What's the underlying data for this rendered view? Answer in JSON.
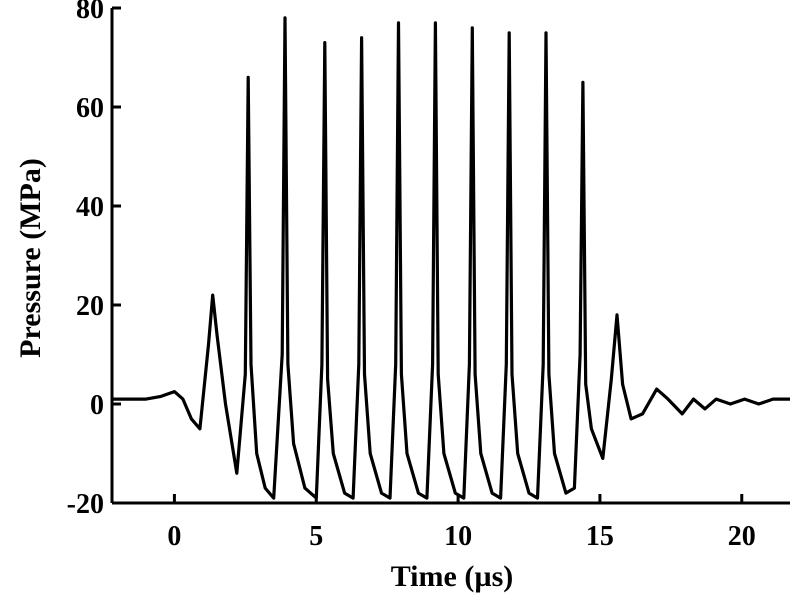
{
  "chart_data": {
    "type": "line",
    "title": "",
    "xlabel": "Time (µs)",
    "ylabel": "Pressure (MPa)",
    "xlim": [
      -2.2,
      21.7
    ],
    "ylim": [
      -20,
      80
    ],
    "xticks": [
      0,
      5,
      10,
      15,
      20
    ],
    "yticks": [
      -20,
      0,
      20,
      40,
      60,
      80
    ],
    "xtick_labels": [
      "0",
      "5",
      "10",
      "15",
      "20"
    ],
    "ytick_labels": [
      "-20",
      "0",
      "20",
      "40",
      "60",
      "80"
    ],
    "grid": false,
    "legend": "none",
    "line_color": "#000000",
    "series": [
      {
        "x": [
          -2.2,
          -1.5,
          -1.0,
          -0.5,
          0.0,
          0.3,
          0.6,
          0.9,
          1.2,
          1.35,
          1.5,
          1.8,
          2.2,
          2.5,
          2.6,
          2.7,
          2.9,
          3.2,
          3.5,
          3.8,
          3.9,
          4.0,
          4.2,
          4.6,
          5.0,
          5.2,
          5.3,
          5.4,
          5.6,
          6.0,
          6.3,
          6.5,
          6.6,
          6.7,
          6.9,
          7.3,
          7.6,
          7.8,
          7.9,
          8.0,
          8.2,
          8.6,
          8.9,
          9.1,
          9.2,
          9.3,
          9.5,
          9.9,
          10.2,
          10.4,
          10.5,
          10.6,
          10.8,
          11.2,
          11.5,
          11.7,
          11.8,
          11.9,
          12.1,
          12.5,
          12.8,
          13.0,
          13.1,
          13.2,
          13.4,
          13.8,
          14.1,
          14.3,
          14.4,
          14.5,
          14.7,
          15.1,
          15.4,
          15.6,
          15.8,
          16.1,
          16.5,
          17.0,
          17.4,
          17.9,
          18.3,
          18.7,
          19.1,
          19.6,
          20.1,
          20.6,
          21.1,
          21.7
        ],
        "y": [
          1,
          1,
          1,
          1.5,
          2.5,
          1,
          -3,
          -5,
          12,
          22,
          14,
          0,
          -14,
          6,
          66,
          8,
          -10,
          -17,
          -19,
          10,
          78,
          8,
          -8,
          -17,
          -19,
          8,
          73,
          5,
          -10,
          -18,
          -19,
          8,
          74,
          6,
          -10,
          -18,
          -19,
          8,
          77,
          6,
          -10,
          -18,
          -19,
          8,
          77,
          6,
          -10,
          -18,
          -19,
          8,
          76,
          6,
          -10,
          -18,
          -19,
          8,
          75,
          6,
          -10,
          -18,
          -19,
          8,
          75,
          6,
          -10,
          -18,
          -17,
          10,
          65,
          4,
          -5,
          -11,
          5,
          18,
          4,
          -3,
          -2,
          3,
          1,
          -2,
          1,
          -1,
          1,
          0,
          1,
          0,
          1,
          1
        ]
      }
    ]
  }
}
